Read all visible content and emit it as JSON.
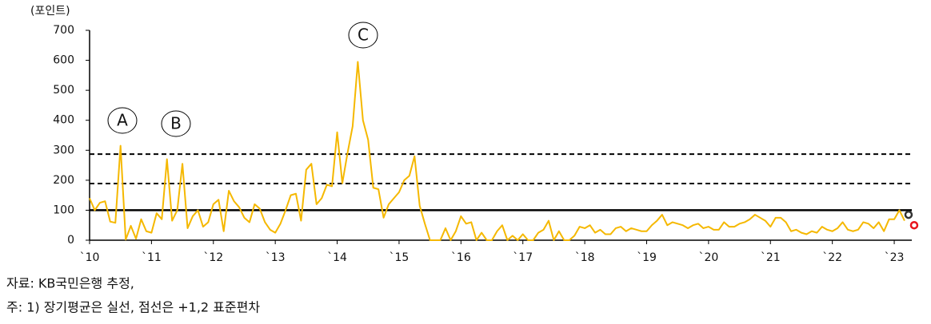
{
  "chart_data": {
    "type": "line",
    "y_label": "(포인트)",
    "categories": [
      "`10",
      null,
      null,
      null,
      null,
      null,
      null,
      null,
      null,
      null,
      null,
      null,
      "`11",
      null,
      null,
      null,
      null,
      null,
      null,
      null,
      null,
      null,
      null,
      null,
      "`12",
      null,
      null,
      null,
      null,
      null,
      null,
      null,
      null,
      null,
      null,
      null,
      "`13",
      null,
      null,
      null,
      null,
      null,
      null,
      null,
      null,
      null,
      null,
      null,
      "`14",
      null,
      null,
      null,
      null,
      null,
      null,
      null,
      null,
      null,
      null,
      null,
      "`15",
      null,
      null,
      null,
      null,
      null,
      null,
      null,
      null,
      null,
      null,
      null,
      "`16",
      null,
      null,
      null,
      null,
      null,
      null,
      null,
      null,
      null,
      null,
      null,
      "`17",
      null,
      null,
      null,
      null,
      null,
      null,
      null,
      null,
      null,
      null,
      null,
      "`18",
      null,
      null,
      null,
      null,
      null,
      null,
      null,
      null,
      null,
      null,
      null,
      "`19",
      null,
      null,
      null,
      null,
      null,
      null,
      null,
      null,
      null,
      null,
      null,
      "`20",
      null,
      null,
      null,
      null,
      null,
      null,
      null,
      null,
      null,
      null,
      null,
      "`21",
      null,
      null,
      null,
      null,
      null,
      null,
      null,
      null,
      null,
      null,
      null,
      "`22",
      null,
      null,
      null,
      null,
      null,
      null,
      null,
      null,
      null,
      null,
      null,
      "`23",
      null,
      null
    ],
    "series": [
      {
        "color": "#f5b800",
        "values": [
          140,
          100,
          125,
          130,
          62,
          58,
          315,
          2,
          48,
          5,
          70,
          30,
          25,
          90,
          70,
          270,
          65,
          100,
          255,
          40,
          80,
          100,
          45,
          60,
          120,
          135,
          30,
          165,
          130,
          110,
          75,
          60,
          120,
          105,
          60,
          35,
          25,
          55,
          100,
          150,
          155,
          65,
          235,
          255,
          120,
          140,
          185,
          180,
          360,
          190,
          290,
          380,
          595,
          400,
          335,
          175,
          170,
          75,
          120,
          140,
          160,
          200,
          215,
          280,
          115,
          55,
          0,
          0,
          0,
          40,
          0,
          30,
          80,
          55,
          60,
          0,
          25,
          0,
          0,
          30,
          50,
          0,
          15,
          0,
          20,
          0,
          0,
          25,
          35,
          65,
          0,
          30,
          0,
          0,
          15,
          45,
          40,
          50,
          25,
          35,
          20,
          20,
          40,
          45,
          30,
          40,
          35,
          30,
          30,
          50,
          65,
          85,
          50,
          60,
          55,
          50,
          40,
          50,
          55,
          40,
          45,
          35,
          35,
          60,
          45,
          45,
          55,
          60,
          70,
          85,
          75,
          65,
          45,
          75,
          75,
          60,
          30,
          35,
          25,
          20,
          30,
          25,
          45,
          35,
          30,
          40,
          60,
          35,
          30,
          35,
          60,
          55,
          40,
          60,
          30,
          70,
          70,
          100,
          65
        ]
      }
    ],
    "reference_lines": [
      {
        "value": 100,
        "style": "solid",
        "color": "#000"
      },
      {
        "value": 189,
        "style": "dashed",
        "color": "#000"
      },
      {
        "value": 287,
        "style": "dashed",
        "color": "#000"
      }
    ],
    "markers": [
      {
        "value": 85,
        "color": "#333"
      },
      {
        "value": 50,
        "color": "#e8141c"
      }
    ],
    "annotations": [
      "A",
      "B",
      "C"
    ],
    "ylim": [
      0,
      700
    ],
    "yticks": [
      0,
      100,
      200,
      300,
      400,
      500,
      600,
      700
    ],
    "notes": [
      "자료: KB국민은행 추정,",
      "주: 1) 장기평균은 실선, 점선은 +1,2 표준편차"
    ]
  }
}
